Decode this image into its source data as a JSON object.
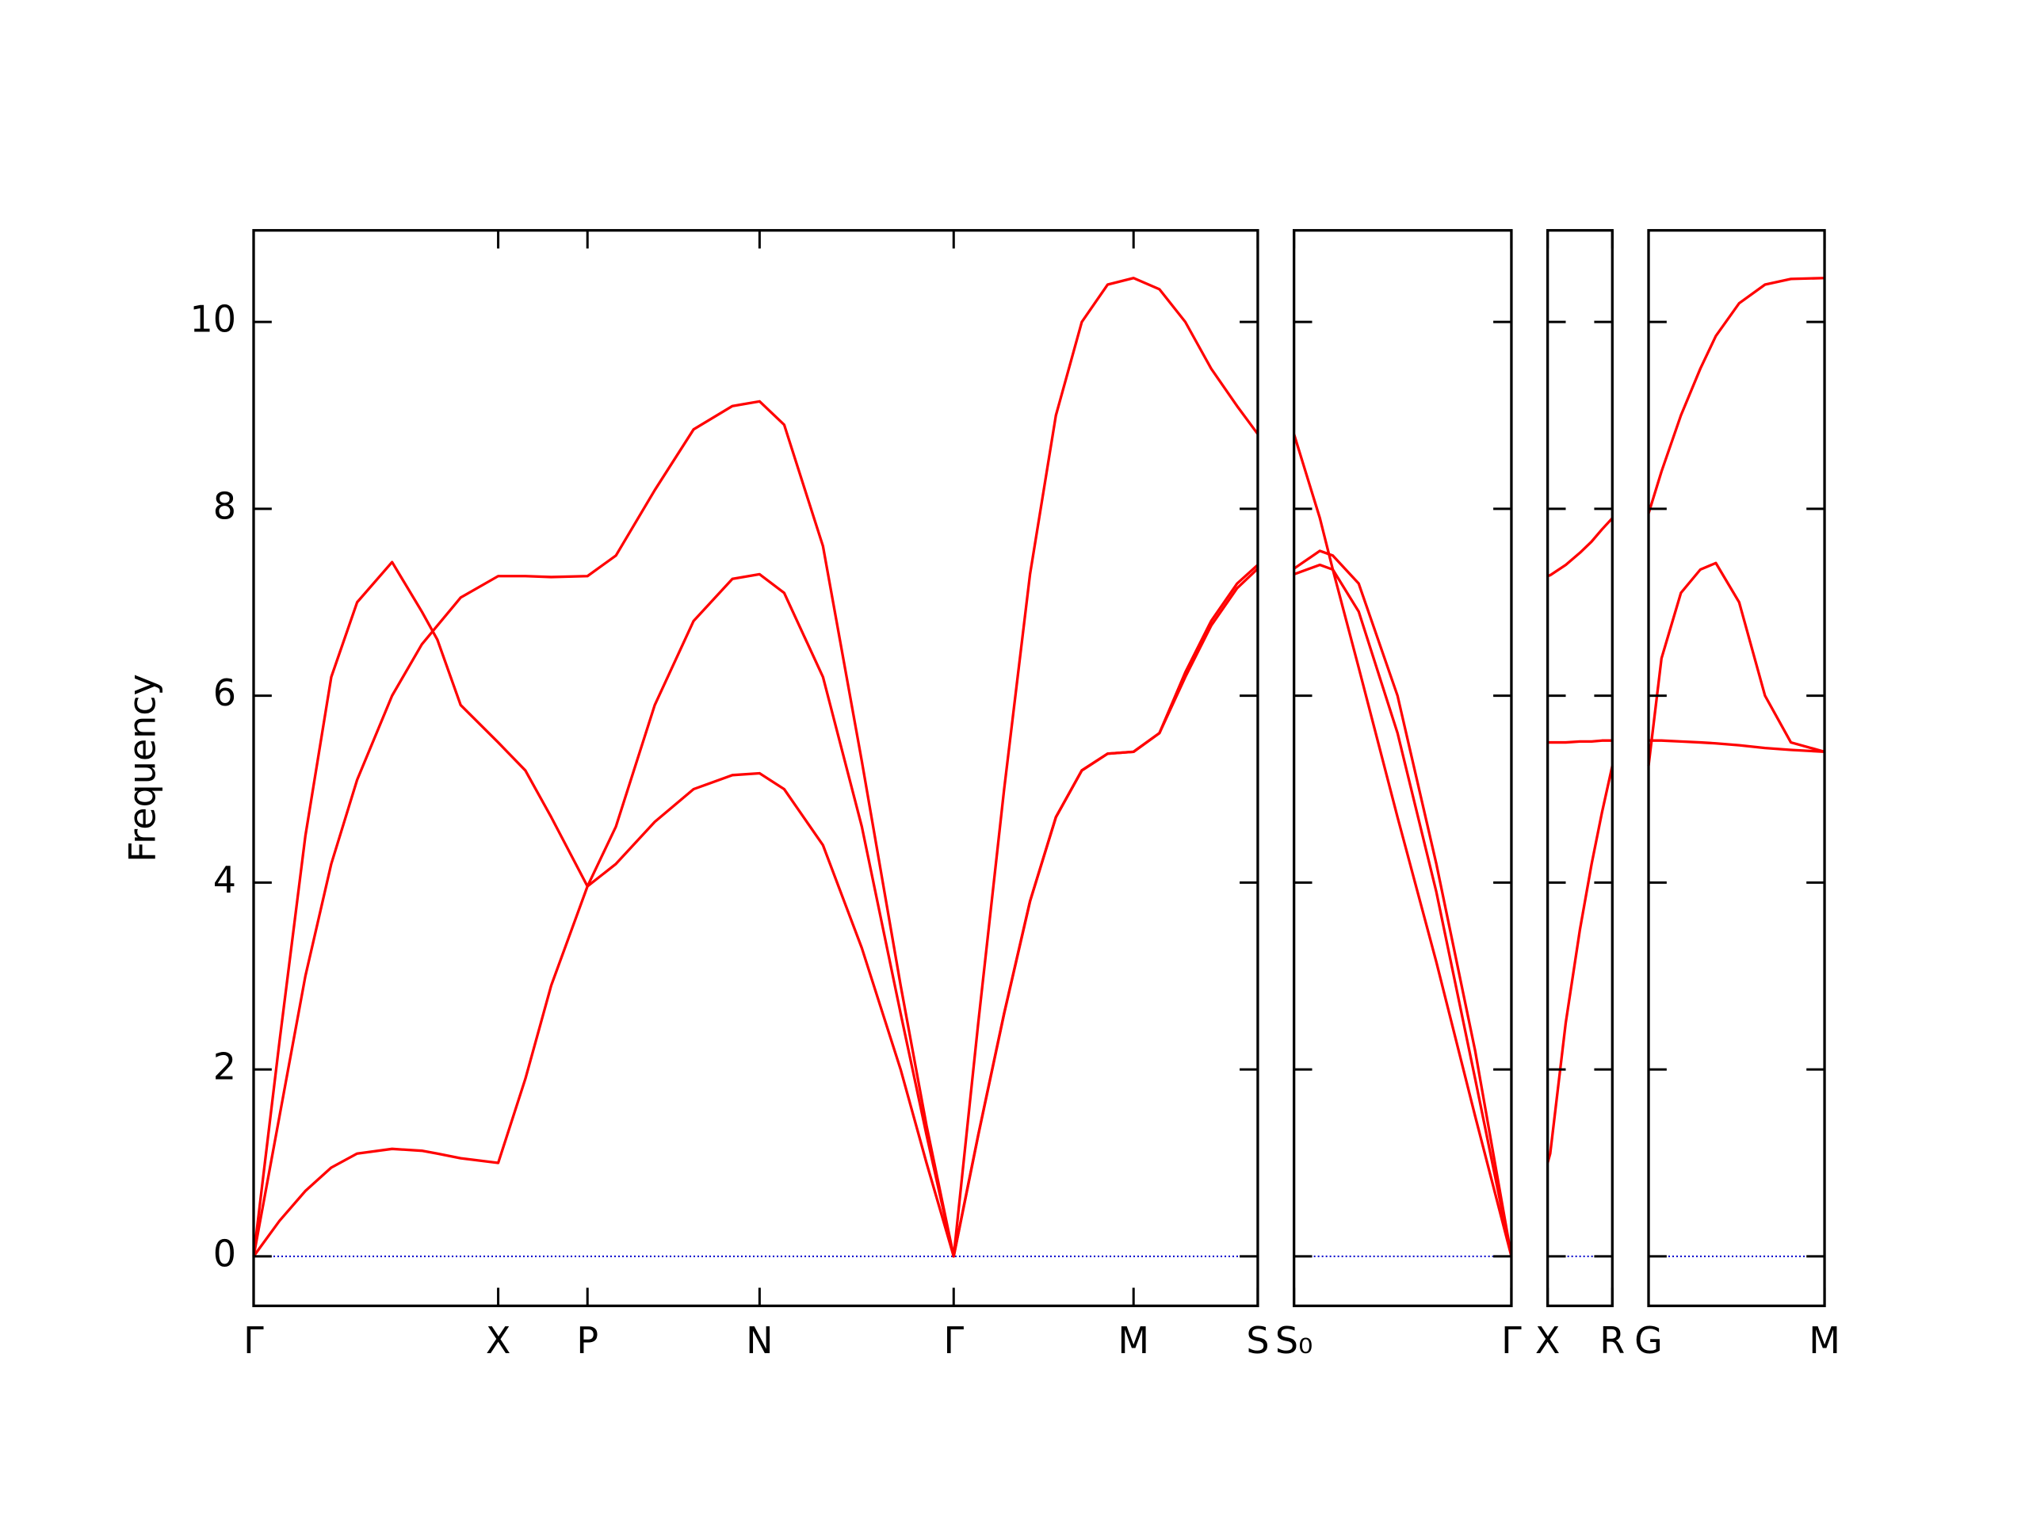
{
  "chart_data": [
    {
      "type": "line",
      "ylabel": "Frequency",
      "ytick_labels": true,
      "zero_line_color": "#0000cc",
      "xlim": [
        0,
        7.76
      ],
      "ylim": [
        -0.53,
        10.98
      ],
      "yticks": [
        0,
        2,
        4,
        6,
        8,
        10
      ],
      "xticks": [
        {
          "value": 0,
          "label": "Γ"
        },
        {
          "value": 1.89,
          "label": "X"
        },
        {
          "value": 2.58,
          "label": "P"
        },
        {
          "value": 3.91,
          "label": "N"
        },
        {
          "value": 5.41,
          "label": "Γ"
        },
        {
          "value": 6.8,
          "label": "M"
        },
        {
          "value": 7.76,
          "label": "S"
        }
      ],
      "x": [
        0,
        0.2,
        0.4,
        0.6,
        0.8,
        1.07,
        1.3,
        1.42,
        1.6,
        1.89,
        2.1,
        2.3,
        2.58,
        2.8,
        3.1,
        3.4,
        3.7,
        3.91,
        4.1,
        4.4,
        4.7,
        5.0,
        5.2,
        5.41,
        5.6,
        5.8,
        6.0,
        6.2,
        6.4,
        6.6,
        6.8,
        7.0,
        7.2,
        7.4,
        7.6,
        7.76
      ],
      "series": [
        {
          "color": "#ff0000",
          "values": [
            0,
            2.3,
            4.5,
            6.2,
            7.0,
            7.43,
            6.9,
            6.6,
            5.9,
            5.5,
            5.2,
            4.7,
            3.96,
            4.6,
            5.9,
            6.8,
            7.25,
            7.3,
            7.1,
            6.2,
            4.6,
            2.6,
            1.3,
            0,
            1.3,
            2.6,
            3.8,
            4.7,
            5.2,
            5.38,
            5.4,
            5.6,
            6.2,
            6.75,
            7.15,
            7.36
          ]
        },
        {
          "color": "#ff0000",
          "values": [
            0,
            1.5,
            3.0,
            4.2,
            5.1,
            6.0,
            6.55,
            6.75,
            7.05,
            7.28,
            7.28,
            7.27,
            7.28,
            7.5,
            8.2,
            8.85,
            9.1,
            9.15,
            8.9,
            7.6,
            5.3,
            2.9,
            1.4,
            0,
            2.5,
            5.0,
            7.3,
            9.0,
            10.0,
            10.4,
            10.47,
            10.35,
            10.0,
            9.5,
            9.1,
            8.8
          ]
        },
        {
          "color": "#ff0000",
          "values": [
            0,
            0.38,
            0.7,
            0.95,
            1.1,
            1.15,
            1.13,
            1.1,
            1.05,
            1.0,
            1.9,
            2.9,
            3.96,
            4.2,
            4.65,
            5.0,
            5.15,
            5.17,
            5.0,
            4.4,
            3.3,
            2.0,
            1.0,
            0,
            1.3,
            2.6,
            3.8,
            4.7,
            5.2,
            5.38,
            5.4,
            5.6,
            6.25,
            6.8,
            7.2,
            7.4
          ]
        }
      ]
    },
    {
      "type": "line",
      "ytick_labels": false,
      "zero_line_color": "#0000cc",
      "xlim": [
        0,
        1.68
      ],
      "ylim": [
        -0.53,
        10.98
      ],
      "yticks": [
        0,
        2,
        4,
        6,
        8,
        10
      ],
      "xticks": [
        {
          "value": 0,
          "label": "S₀"
        },
        {
          "value": 1.68,
          "label": "Γ"
        }
      ],
      "x": [
        0,
        0.2,
        0.3,
        0.5,
        0.8,
        1.1,
        1.4,
        1.68
      ],
      "series": [
        {
          "color": "#ff0000",
          "values": [
            8.8,
            7.9,
            7.35,
            6.3,
            4.7,
            3.15,
            1.5,
            0
          ]
        },
        {
          "color": "#ff0000",
          "values": [
            7.3,
            7.4,
            7.35,
            6.9,
            5.6,
            3.9,
            1.9,
            0
          ]
        },
        {
          "color": "#ff0000",
          "values": [
            7.36,
            7.55,
            7.5,
            7.2,
            6.0,
            4.2,
            2.2,
            0
          ]
        }
      ]
    },
    {
      "type": "line",
      "ytick_labels": false,
      "zero_line_color": "#0000cc",
      "xlim": [
        0,
        0.5
      ],
      "ylim": [
        -0.53,
        10.98
      ],
      "yticks": [
        0,
        2,
        4,
        6,
        8,
        10
      ],
      "xticks": [
        {
          "value": 0,
          "label": "X"
        },
        {
          "value": 0.5,
          "label": "R"
        }
      ],
      "x": [
        0,
        0.02,
        0.14,
        0.25,
        0.34,
        0.42,
        0.5
      ],
      "series": [
        {
          "color": "#ff0000",
          "values": [
            7.28,
            7.29,
            7.4,
            7.53,
            7.65,
            7.78,
            7.9
          ]
        },
        {
          "color": "#ff0000",
          "values": [
            5.5,
            5.5,
            5.5,
            5.51,
            5.51,
            5.52,
            5.52
          ]
        },
        {
          "color": "#ff0000",
          "values": [
            1.0,
            1.1,
            2.5,
            3.5,
            4.2,
            4.75,
            5.25
          ]
        }
      ]
    },
    {
      "type": "line",
      "ytick_labels": false,
      "zero_line_color": "#0000cc",
      "xlim": [
        0,
        1.36
      ],
      "ylim": [
        -0.53,
        10.98
      ],
      "yticks": [
        0,
        2,
        4,
        6,
        8,
        10
      ],
      "xticks": [
        {
          "value": 0,
          "label": "G"
        },
        {
          "value": 1.36,
          "label": "M"
        }
      ],
      "x": [
        0,
        0.1,
        0.25,
        0.4,
        0.52,
        0.7,
        0.9,
        1.1,
        1.36
      ],
      "series": [
        {
          "color": "#ff0000",
          "values": [
            7.95,
            8.4,
            9.0,
            9.5,
            9.85,
            10.2,
            10.4,
            10.46,
            10.47
          ]
        },
        {
          "color": "#ff0000",
          "values": [
            5.25,
            6.4,
            7.1,
            7.35,
            7.42,
            7.0,
            6.0,
            5.5,
            5.4
          ]
        },
        {
          "color": "#ff0000",
          "values": [
            5.52,
            5.52,
            5.51,
            5.5,
            5.49,
            5.47,
            5.44,
            5.42,
            5.4
          ]
        }
      ]
    }
  ]
}
